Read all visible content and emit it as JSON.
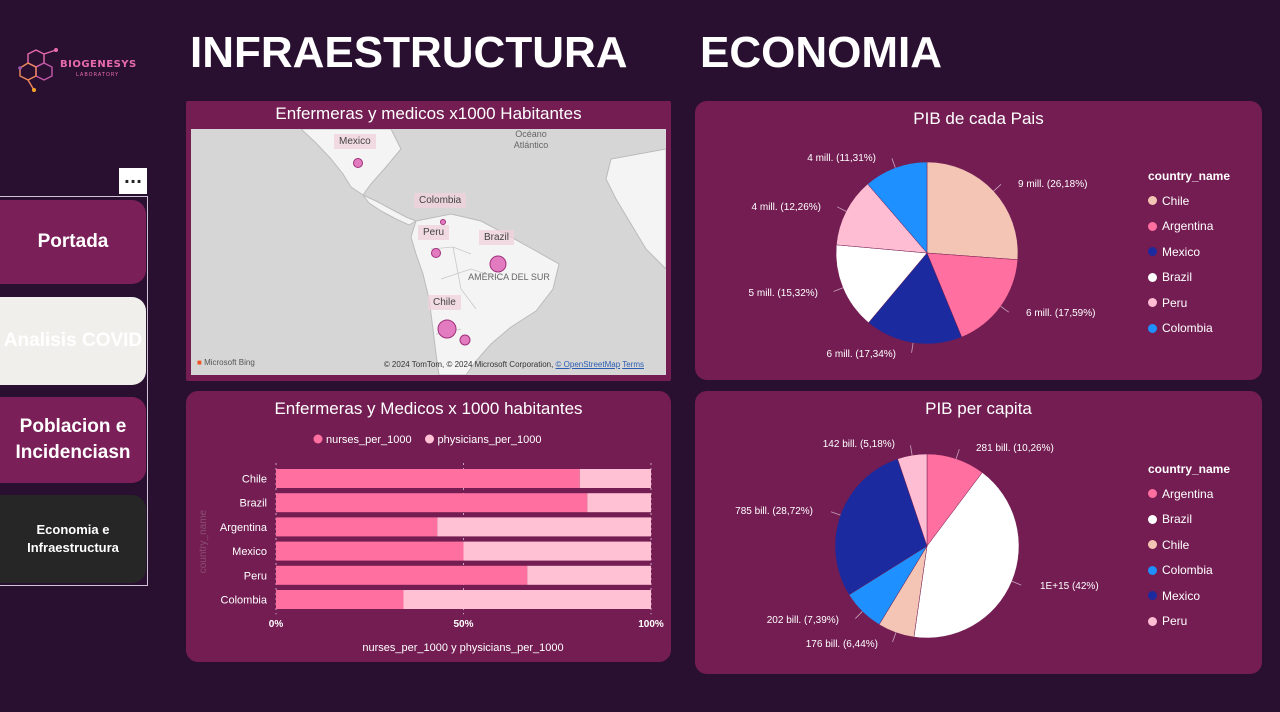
{
  "logo": {
    "name": "BIOGENESYS",
    "sub": "LABORATORY"
  },
  "nav": {
    "more": "...",
    "items": [
      {
        "label": "Portada"
      },
      {
        "label": "Analisis COVID"
      },
      {
        "label": "Poblacion e Incidenciasn"
      },
      {
        "label": "Economia e Infraestructura"
      }
    ]
  },
  "sections": {
    "infra": "INFRAESTRUCTURA",
    "eco": "ECONOMIA"
  },
  "map": {
    "title": "Enfermeras y medicos x1000 Habitantes",
    "labels": [
      "Mexico",
      "Colombia",
      "Peru",
      "Brazil",
      "Chile"
    ],
    "ocean": "Océano Atlántico",
    "region": "AMÉRICA DEL SUR",
    "bing": "Microsoft Bing",
    "copyright": "© 2024 TomTom, © 2024 Microsoft Corporation,",
    "osm": "© OpenStreetMap",
    "terms": "Terms"
  },
  "chart_data": [
    {
      "type": "bar",
      "orientation": "horizontal-stacked-100",
      "title": "Enfermeras y Medicos x 1000 habitantes",
      "categories": [
        "Chile",
        "Brazil",
        "Argentina",
        "Mexico",
        "Peru",
        "Colombia"
      ],
      "series": [
        {
          "name": "nurses_per_1000",
          "values": [
            81,
            83,
            43,
            50,
            67,
            34
          ]
        },
        {
          "name": "physicians_per_1000",
          "values": [
            19,
            17,
            57,
            50,
            33,
            66
          ]
        }
      ],
      "colors": [
        "#ff6f9f",
        "#ffc1d3"
      ],
      "xlabel": "nurses_per_1000 y physicians_per_1000",
      "ylabel": "country_name",
      "xticks": [
        "0%",
        "50%",
        "100%"
      ],
      "xlim": [
        0,
        100
      ],
      "grid": true,
      "legend": "top"
    },
    {
      "type": "pie",
      "title": "PIB de cada Pais",
      "legend_title": "country_name",
      "legend": "right",
      "slices": [
        {
          "name": "Chile",
          "value": 26.18,
          "label": "9 mill. (26,18%)",
          "color": "#f4c5b5"
        },
        {
          "name": "Argentina",
          "value": 17.59,
          "label": "6 mill. (17,59%)",
          "color": "#ff6f9f"
        },
        {
          "name": "Mexico",
          "value": 17.34,
          "label": "6 mill. (17,34%)",
          "color": "#1b2a9e"
        },
        {
          "name": "Brazil",
          "value": 15.32,
          "label": "5 mill. (15,32%)",
          "color": "#ffffff"
        },
        {
          "name": "Peru",
          "value": 12.26,
          "label": "4 mill. (12,26%)",
          "color": "#ffbdd4"
        },
        {
          "name": "Colombia",
          "value": 11.31,
          "label": "4 mill. (11,31%)",
          "color": "#1e90ff"
        }
      ]
    },
    {
      "type": "pie",
      "title": "PIB per capita",
      "legend_title": "country_name",
      "legend": "right",
      "slices": [
        {
          "name": "Argentina",
          "value": 10.26,
          "label": "281 bill. (10,26%)",
          "color": "#ff6f9f"
        },
        {
          "name": "Brazil",
          "value": 42,
          "label": "1E+15 (42%)",
          "color": "#ffffff"
        },
        {
          "name": "Chile",
          "value": 6.44,
          "label": "176 bill. (6,44%)",
          "color": "#f4c5b5"
        },
        {
          "name": "Colombia",
          "value": 7.39,
          "label": "202 bill. (7,39%)",
          "color": "#1e90ff"
        },
        {
          "name": "Mexico",
          "value": 28.72,
          "label": "785 bill. (28,72%)",
          "color": "#1b2a9e"
        },
        {
          "name": "Peru",
          "value": 5.18,
          "label": "142 bill. (5,18%)",
          "color": "#ffbdd4"
        }
      ]
    }
  ]
}
